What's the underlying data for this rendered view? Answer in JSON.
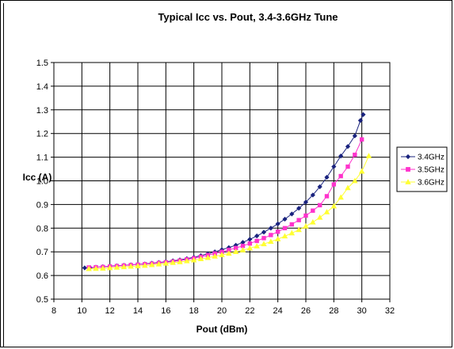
{
  "chart_data": {
    "type": "line",
    "title": "Typical Icc vs. Pout, 3.4-3.6GHz Tune",
    "xlabel": "Pout (dBm)",
    "ylabel": "Icc (A)",
    "xlim": [
      8,
      32
    ],
    "ylim": [
      0.5,
      1.5
    ],
    "xticks": [
      "8",
      "10",
      "12",
      "14",
      "16",
      "18",
      "20",
      "22",
      "24",
      "26",
      "28",
      "30",
      "32"
    ],
    "yticks": [
      "0.5",
      "0.6",
      "0.7",
      "0.8",
      "0.9",
      "1.0",
      "1.1",
      "1.2",
      "1.3",
      "1.4",
      "1.5"
    ],
    "grid": true,
    "legend_position": "right",
    "series": [
      {
        "name": "3.4GHz",
        "color": "#1a237e",
        "marker": "diamond",
        "x": [
          10.2,
          10.6,
          11,
          11.5,
          12,
          12.5,
          13,
          13.5,
          14,
          14.5,
          15,
          15.5,
          16,
          16.5,
          17,
          17.5,
          18,
          18.5,
          19,
          19.5,
          20,
          20.5,
          21,
          21.5,
          22,
          22.5,
          23,
          23.5,
          24,
          24.5,
          25,
          25.5,
          26,
          26.5,
          27,
          27.5,
          28,
          28.5,
          29,
          29.5,
          29.9,
          30.1
        ],
        "y": [
          0.632,
          0.633,
          0.635,
          0.637,
          0.639,
          0.641,
          0.643,
          0.645,
          0.647,
          0.649,
          0.652,
          0.655,
          0.658,
          0.662,
          0.666,
          0.671,
          0.677,
          0.684,
          0.692,
          0.7,
          0.709,
          0.718,
          0.728,
          0.74,
          0.753,
          0.767,
          0.783,
          0.8,
          0.818,
          0.838,
          0.86,
          0.884,
          0.91,
          0.94,
          0.975,
          1.015,
          1.06,
          1.105,
          1.145,
          1.19,
          1.255,
          1.28
        ]
      },
      {
        "name": "3.5GHz",
        "color": "#ff33cc",
        "marker": "square",
        "x": [
          10.5,
          11,
          11.5,
          12,
          12.5,
          13,
          13.5,
          14,
          14.5,
          15,
          15.5,
          16,
          16.5,
          17,
          17.5,
          18,
          18.5,
          19,
          19.5,
          20,
          20.5,
          21,
          21.5,
          22,
          22.5,
          23,
          23.5,
          24,
          24.5,
          25,
          25.5,
          26,
          26.5,
          27,
          27.5,
          28,
          28.5,
          29,
          29.5,
          30
        ],
        "y": [
          0.634,
          0.635,
          0.636,
          0.638,
          0.64,
          0.642,
          0.644,
          0.646,
          0.648,
          0.65,
          0.653,
          0.656,
          0.659,
          0.663,
          0.668,
          0.673,
          0.679,
          0.686,
          0.693,
          0.7,
          0.708,
          0.716,
          0.725,
          0.735,
          0.746,
          0.758,
          0.771,
          0.785,
          0.8,
          0.816,
          0.834,
          0.853,
          0.874,
          0.897,
          0.935,
          0.985,
          1.02,
          1.06,
          1.11,
          1.175
        ]
      },
      {
        "name": "3.6GHz",
        "color": "#ffff33",
        "marker": "triangle",
        "x": [
          10.5,
          11,
          11.5,
          12,
          12.5,
          13,
          13.5,
          14,
          14.5,
          15,
          15.5,
          16,
          16.5,
          17,
          17.5,
          18,
          18.5,
          19,
          19.5,
          20,
          20.5,
          21,
          21.5,
          22,
          22.5,
          23,
          23.5,
          24,
          24.5,
          25,
          25.5,
          26,
          26.5,
          27,
          27.5,
          28,
          28.5,
          29,
          29.5,
          30,
          30.5
        ],
        "y": [
          0.628,
          0.629,
          0.63,
          0.632,
          0.634,
          0.636,
          0.638,
          0.64,
          0.642,
          0.645,
          0.648,
          0.651,
          0.654,
          0.657,
          0.661,
          0.665,
          0.67,
          0.675,
          0.681,
          0.687,
          0.693,
          0.7,
          0.707,
          0.715,
          0.724,
          0.733,
          0.743,
          0.754,
          0.766,
          0.779,
          0.793,
          0.808,
          0.825,
          0.845,
          0.868,
          0.893,
          0.93,
          0.97,
          1.0,
          1.04,
          1.105
        ]
      }
    ]
  }
}
